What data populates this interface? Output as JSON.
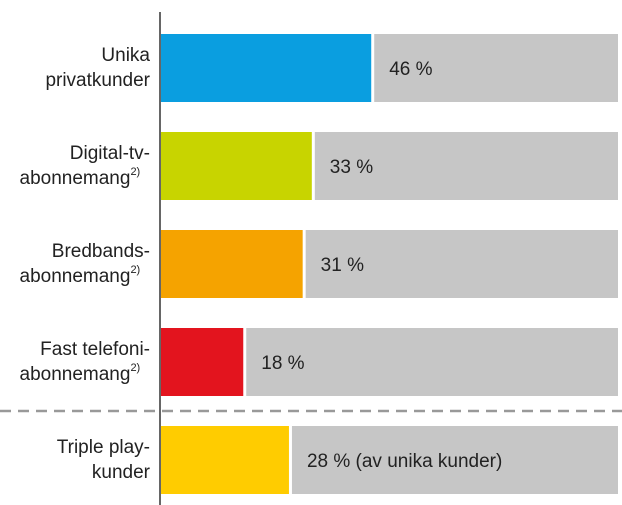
{
  "chart_data": {
    "type": "bar",
    "orientation": "horizontal",
    "categories": [
      "Unika privatkunder",
      "Digital-tv-abonnemang",
      "Bredbands-abonnemang",
      "Fast telefoni-abonnemang",
      "Triple play-kunder"
    ],
    "category_notes": [
      null,
      "2)",
      "2)",
      "2)",
      null
    ],
    "values": [
      46,
      33,
      31,
      18,
      28
    ],
    "value_labels": [
      "46 %",
      "33 %",
      "31 %",
      "18 %",
      "28 % (av unika kunder)"
    ],
    "colors": [
      "#0a9ee0",
      "#c8d400",
      "#f5a300",
      "#e3141e",
      "#ffcc00"
    ],
    "track_color": "#c6c6c6",
    "xlim": [
      0,
      100
    ]
  }
}
